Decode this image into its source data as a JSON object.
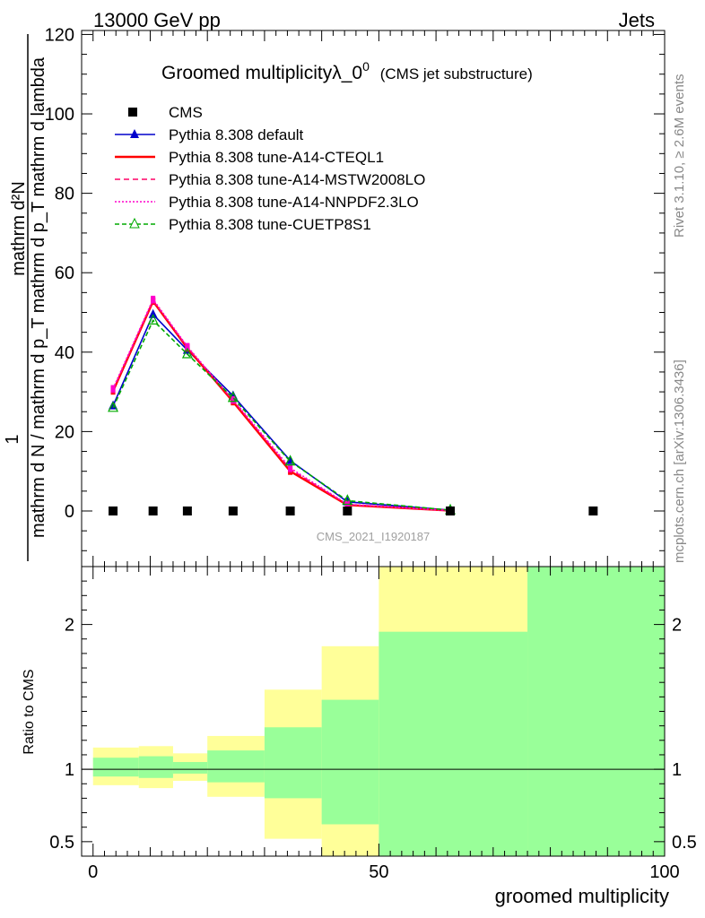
{
  "header": {
    "energy": "13000 GeV pp",
    "process": "Jets"
  },
  "chart_data": [
    {
      "type": "line",
      "title": "Groomed multiplicityλ_0",
      "title_sup": "0",
      "subtitle": "(CMS jet substructure)",
      "ylabel_top": "1",
      "ylabel_num": "mathrm d²N",
      "ylabel_den": "mathrm d N / mathrm d p_T mathrm d p_T mathrm d lambda",
      "xlim": [
        -2,
        100
      ],
      "ylim": [
        -14,
        121
      ],
      "y_ticks": [
        0,
        20,
        40,
        60,
        80,
        100,
        120
      ],
      "grid": false,
      "legend_position": "top-left",
      "watermark": "CMS_2021_I1920187",
      "side_label_top": "Rivet 3.1.10, ≥ 2.6M events",
      "side_label_bottom": "mcplots.cern.ch [arXiv:1306.3436]",
      "series": [
        {
          "name": "CMS",
          "color": "#000000",
          "style": "marker-square",
          "x": [
            3.5,
            10.5,
            16.5,
            24.5,
            34.5,
            44.5,
            62.5,
            87.5
          ],
          "y": [
            0,
            0,
            0,
            0,
            0,
            0,
            0,
            0
          ]
        },
        {
          "name": "Pythia 8.308 default",
          "color": "#0000cc",
          "style": "solid-triangle",
          "x": [
            3.5,
            10.5,
            16.5,
            24.5,
            34.5,
            44.5,
            62.5
          ],
          "y": [
            26.5,
            49.5,
            40.5,
            29.0,
            12.7,
            2.3,
            0.2
          ]
        },
        {
          "name": "Pythia 8.308 tune-A14-CTEQL1",
          "color": "#ff0000",
          "style": "solid",
          "x": [
            3.5,
            10.5,
            16.5,
            24.5,
            34.5,
            44.5,
            62.5
          ],
          "y": [
            30.2,
            52.8,
            41.0,
            27.5,
            10.0,
            1.5,
            0.1
          ]
        },
        {
          "name": "Pythia 8.308 tune-A14-MSTW2008LO",
          "color": "#ff0066",
          "style": "dashed",
          "x": [
            3.5,
            10.5,
            16.5,
            24.5,
            34.5,
            44.5,
            62.5
          ],
          "y": [
            30.5,
            53.0,
            41.2,
            27.8,
            10.5,
            1.6,
            0.1
          ]
        },
        {
          "name": "Pythia 8.308 tune-A14-NNPDF2.3LO",
          "color": "#ff00cc",
          "style": "dotted",
          "x": [
            3.5,
            10.5,
            16.5,
            24.5,
            34.5,
            44.5,
            62.5
          ],
          "y": [
            30.8,
            53.3,
            41.4,
            28.0,
            10.8,
            1.7,
            0.1
          ]
        },
        {
          "name": "Pythia 8.308 tune-CUETP8S1",
          "color": "#00aa00",
          "style": "dashed-open-triangle",
          "x": [
            3.5,
            10.5,
            16.5,
            24.5,
            34.5,
            44.5,
            62.5
          ],
          "y": [
            26.0,
            48.0,
            39.5,
            28.5,
            12.5,
            2.6,
            0.2
          ]
        }
      ]
    },
    {
      "type": "area",
      "ylabel": "Ratio to CMS",
      "xlabel": "groomed multiplicity",
      "xlim": [
        -2,
        100
      ],
      "ylim": [
        0.4,
        2.4
      ],
      "y_ticks": [
        0.5,
        1,
        2
      ],
      "x_ticks": [
        0,
        50,
        100
      ],
      "reference_line": 1,
      "band_colors": {
        "outer": "#ffff99",
        "inner": "#99ff99"
      },
      "bins": [
        {
          "x0": 0,
          "x1": 8,
          "outer": [
            0.89,
            1.15
          ],
          "inner": [
            0.95,
            1.08
          ]
        },
        {
          "x0": 8,
          "x1": 14,
          "outer": [
            0.87,
            1.16
          ],
          "inner": [
            0.94,
            1.09
          ]
        },
        {
          "x0": 14,
          "x1": 20,
          "outer": [
            0.92,
            1.11
          ],
          "inner": [
            0.97,
            1.05
          ]
        },
        {
          "x0": 20,
          "x1": 30,
          "outer": [
            0.81,
            1.23
          ],
          "inner": [
            0.91,
            1.13
          ]
        },
        {
          "x0": 30,
          "x1": 40,
          "outer": [
            0.52,
            1.55
          ],
          "inner": [
            0.8,
            1.29
          ]
        },
        {
          "x0": 40,
          "x1": 50,
          "outer": [
            0.4,
            1.85
          ],
          "inner": [
            0.62,
            1.48
          ]
        },
        {
          "x0": 50,
          "x1": 76,
          "outer": [
            0.4,
            2.4
          ],
          "inner": [
            0.4,
            1.95
          ]
        },
        {
          "x0": 76,
          "x1": 100,
          "outer": [
            0.4,
            2.4
          ],
          "inner": [
            0.4,
            2.4
          ]
        }
      ]
    }
  ]
}
